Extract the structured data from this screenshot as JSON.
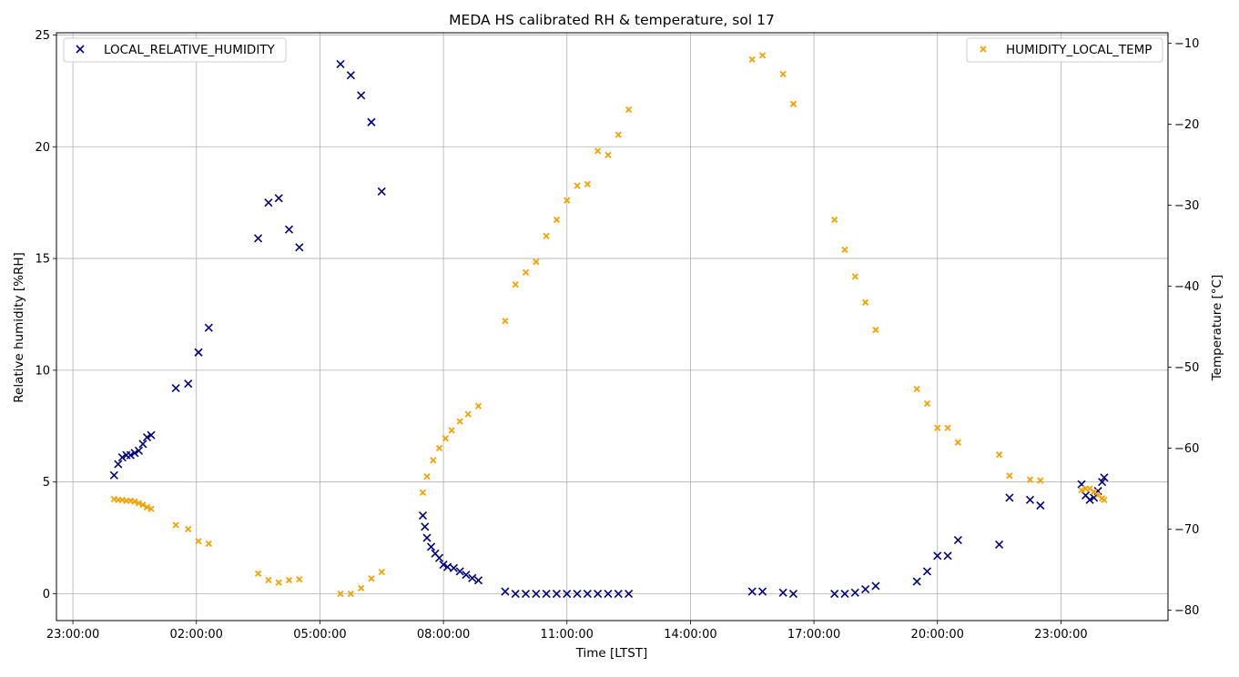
{
  "chart_data": {
    "type": "scatter",
    "title": "MEDA HS calibrated RH & temperature, sol 17",
    "xlabel": "Time [LTST]",
    "ylabel_left": "Relative humidity [%RH]",
    "ylabel_right": "Temperature [$^\\circ$C]",
    "ylabel_right_display": "Temperature [°C]",
    "x_unit": "hours since 23:00:00 LTST",
    "xlim": [
      -0.4,
      26.6
    ],
    "ylim_left": [
      -1.2,
      25.1
    ],
    "ylim_right": [
      -81.3,
      -8.7
    ],
    "x_ticks": [
      {
        "x": 0,
        "label": "23:00:00"
      },
      {
        "x": 3,
        "label": "02:00:00"
      },
      {
        "x": 6,
        "label": "05:00:00"
      },
      {
        "x": 9,
        "label": "08:00:00"
      },
      {
        "x": 12,
        "label": "11:00:00"
      },
      {
        "x": 15,
        "label": "14:00:00"
      },
      {
        "x": 18,
        "label": "17:00:00"
      },
      {
        "x": 21,
        "label": "20:00:00"
      },
      {
        "x": 24,
        "label": "23:00:00"
      }
    ],
    "y_ticks_left": [
      0,
      5,
      10,
      15,
      20,
      25
    ],
    "y_tick_labels_left": [
      "0",
      "5",
      "10",
      "15",
      "20",
      "25"
    ],
    "y_ticks_right": [
      -80,
      -70,
      -60,
      -50,
      -40,
      -30,
      -20,
      -10
    ],
    "y_tick_labels_right": [
      "−80",
      "−70",
      "−60",
      "−50",
      "−40",
      "−30",
      "−20",
      "−10"
    ],
    "grid": true,
    "series": [
      {
        "name": "LOCAL_RELATIVE_HUMIDITY",
        "axis": "left",
        "marker": "x",
        "color": "#00007f",
        "legend_position": "top-left",
        "points": [
          [
            1.0,
            5.3
          ],
          [
            1.1,
            5.8
          ],
          [
            1.2,
            6.1
          ],
          [
            1.3,
            6.2
          ],
          [
            1.4,
            6.2
          ],
          [
            1.5,
            6.3
          ],
          [
            1.6,
            6.4
          ],
          [
            1.7,
            6.7
          ],
          [
            1.8,
            7.0
          ],
          [
            1.9,
            7.1
          ],
          [
            2.5,
            9.2
          ],
          [
            2.8,
            9.4
          ],
          [
            3.05,
            10.8
          ],
          [
            3.3,
            11.9
          ],
          [
            4.5,
            15.9
          ],
          [
            4.75,
            17.5
          ],
          [
            5.0,
            17.7
          ],
          [
            5.25,
            16.3
          ],
          [
            5.5,
            15.5
          ],
          [
            6.5,
            23.7
          ],
          [
            6.75,
            23.2
          ],
          [
            7.0,
            22.3
          ],
          [
            7.25,
            21.1
          ],
          [
            7.5,
            18.0
          ],
          [
            8.5,
            3.5
          ],
          [
            8.55,
            3.0
          ],
          [
            8.6,
            2.5
          ],
          [
            8.7,
            2.1
          ],
          [
            8.8,
            1.8
          ],
          [
            8.9,
            1.6
          ],
          [
            9.0,
            1.3
          ],
          [
            9.1,
            1.2
          ],
          [
            9.25,
            1.15
          ],
          [
            9.4,
            1.0
          ],
          [
            9.55,
            0.85
          ],
          [
            9.7,
            0.7
          ],
          [
            9.85,
            0.6
          ],
          [
            10.5,
            0.1
          ],
          [
            10.75,
            0.0
          ],
          [
            11.0,
            0.0
          ],
          [
            11.25,
            0.0
          ],
          [
            11.5,
            0.0
          ],
          [
            11.75,
            0.0
          ],
          [
            12.0,
            0.0
          ],
          [
            12.25,
            0.0
          ],
          [
            12.5,
            0.0
          ],
          [
            12.75,
            0.0
          ],
          [
            13.0,
            0.0
          ],
          [
            13.25,
            0.0
          ],
          [
            13.5,
            0.0
          ],
          [
            16.5,
            0.1
          ],
          [
            16.75,
            0.1
          ],
          [
            17.25,
            0.05
          ],
          [
            17.5,
            0.0
          ],
          [
            18.5,
            0.0
          ],
          [
            18.75,
            0.0
          ],
          [
            19.0,
            0.05
          ],
          [
            19.25,
            0.2
          ],
          [
            19.5,
            0.35
          ],
          [
            20.5,
            0.55
          ],
          [
            20.75,
            1.0
          ],
          [
            21.0,
            1.7
          ],
          [
            21.25,
            1.7
          ],
          [
            21.5,
            2.4
          ],
          [
            22.5,
            2.2
          ],
          [
            22.75,
            4.3
          ],
          [
            23.25,
            4.2
          ],
          [
            23.5,
            3.95
          ],
          [
            24.5,
            4.9
          ],
          [
            24.6,
            4.4
          ],
          [
            24.7,
            4.2
          ],
          [
            24.8,
            4.3
          ],
          [
            24.9,
            4.6
          ],
          [
            25.0,
            5.0
          ],
          [
            25.05,
            5.2
          ]
        ]
      },
      {
        "name": "HUMIDITY_LOCAL_TEMP",
        "axis": "right",
        "marker": "x",
        "color": "#f5a200",
        "legend_position": "top-right",
        "points": [
          [
            1.0,
            -66.3
          ],
          [
            1.1,
            -66.4
          ],
          [
            1.2,
            -66.4
          ],
          [
            1.3,
            -66.5
          ],
          [
            1.4,
            -66.5
          ],
          [
            1.5,
            -66.6
          ],
          [
            1.6,
            -66.8
          ],
          [
            1.7,
            -67.0
          ],
          [
            1.8,
            -67.3
          ],
          [
            1.9,
            -67.5
          ],
          [
            2.5,
            -69.5
          ],
          [
            2.8,
            -70.0
          ],
          [
            3.05,
            -71.5
          ],
          [
            3.3,
            -71.8
          ],
          [
            4.5,
            -75.5
          ],
          [
            4.75,
            -76.3
          ],
          [
            5.0,
            -76.6
          ],
          [
            5.25,
            -76.3
          ],
          [
            5.5,
            -76.2
          ],
          [
            6.5,
            -78.0
          ],
          [
            6.75,
            -78.0
          ],
          [
            7.0,
            -77.3
          ],
          [
            7.25,
            -76.1
          ],
          [
            7.5,
            -75.3
          ],
          [
            8.5,
            -65.5
          ],
          [
            8.6,
            -63.5
          ],
          [
            8.75,
            -61.5
          ],
          [
            8.9,
            -60.0
          ],
          [
            9.05,
            -58.8
          ],
          [
            9.2,
            -57.8
          ],
          [
            9.4,
            -56.7
          ],
          [
            9.6,
            -55.8
          ],
          [
            9.85,
            -54.8
          ],
          [
            10.5,
            -44.3
          ],
          [
            10.75,
            -39.8
          ],
          [
            11.0,
            -38.3
          ],
          [
            11.25,
            -37.0
          ],
          [
            11.5,
            -33.8
          ],
          [
            11.75,
            -31.8
          ],
          [
            12.0,
            -29.4
          ],
          [
            12.25,
            -27.6
          ],
          [
            12.5,
            -27.4
          ],
          [
            12.75,
            -23.3
          ],
          [
            13.0,
            -23.8
          ],
          [
            13.25,
            -21.3
          ],
          [
            13.5,
            -18.2
          ],
          [
            16.5,
            -12.0
          ],
          [
            16.75,
            -11.5
          ],
          [
            17.25,
            -13.8
          ],
          [
            17.5,
            -17.5
          ],
          [
            18.5,
            -31.8
          ],
          [
            18.75,
            -35.5
          ],
          [
            19.0,
            -38.8
          ],
          [
            19.25,
            -42.0
          ],
          [
            19.5,
            -45.4
          ],
          [
            20.5,
            -52.7
          ],
          [
            20.75,
            -54.5
          ],
          [
            21.0,
            -57.5
          ],
          [
            21.25,
            -57.5
          ],
          [
            21.5,
            -59.3
          ],
          [
            22.5,
            -60.8
          ],
          [
            22.75,
            -63.4
          ],
          [
            23.25,
            -63.9
          ],
          [
            23.5,
            -64.0
          ],
          [
            24.5,
            -65.2
          ],
          [
            24.6,
            -65.0
          ],
          [
            24.7,
            -65.0
          ],
          [
            24.8,
            -65.4
          ],
          [
            24.9,
            -65.8
          ],
          [
            25.0,
            -66.2
          ],
          [
            25.05,
            -66.4
          ]
        ]
      }
    ]
  }
}
